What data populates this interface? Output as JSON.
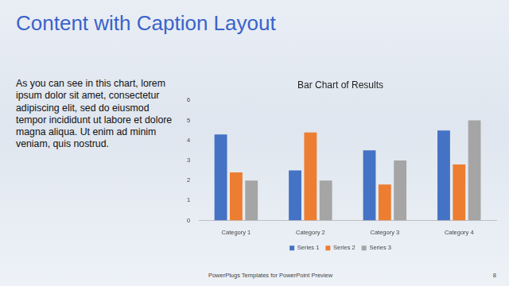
{
  "slide": {
    "title": "Content with Caption Layout",
    "caption": "As you can see in this chart, lorem ipsum dolor sit amet, consectetur adipiscing elit, sed do eiusmod tempor incididunt ut labore et dolore magna aliqua. Ut enim ad minim veniam, quis nostrud.",
    "footer": "PowerPlugs Templates for PowerPoint Preview",
    "page_number": 8
  },
  "chart_data": {
    "type": "bar",
    "title": "Bar Chart of Results",
    "categories": [
      "Category 1",
      "Category 2",
      "Category 3",
      "Category 4"
    ],
    "series": [
      {
        "name": "Series 1",
        "color": "#4472c4",
        "values": [
          4.3,
          2.5,
          3.5,
          4.5
        ]
      },
      {
        "name": "Series 2",
        "color": "#ed7d31",
        "values": [
          2.4,
          4.4,
          1.8,
          2.8
        ]
      },
      {
        "name": "Series 3",
        "color": "#a5a5a5",
        "values": [
          2,
          2,
          3,
          5
        ]
      }
    ],
    "ylim": [
      0,
      6
    ],
    "yticks": [
      0,
      1,
      2,
      3,
      4,
      5,
      6
    ],
    "grid": false,
    "legend": "bottom"
  }
}
